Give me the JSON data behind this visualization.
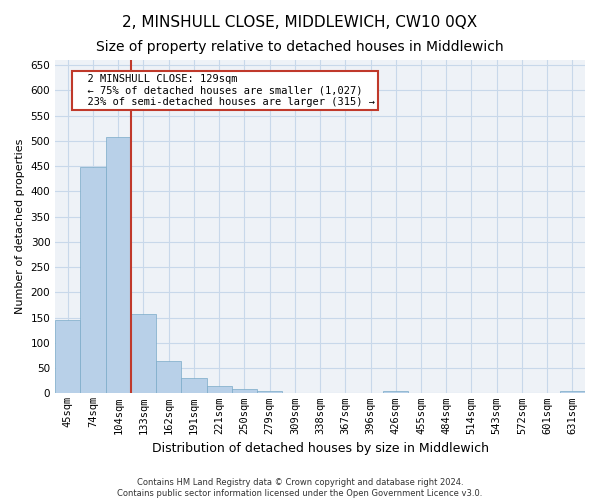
{
  "title": "2, MINSHULL CLOSE, MIDDLEWICH, CW10 0QX",
  "subtitle": "Size of property relative to detached houses in Middlewich",
  "xlabel": "Distribution of detached houses by size in Middlewich",
  "ylabel": "Number of detached properties",
  "footer_line1": "Contains HM Land Registry data © Crown copyright and database right 2024.",
  "footer_line2": "Contains public sector information licensed under the Open Government Licence v3.0.",
  "categories": [
    "45sqm",
    "74sqm",
    "104sqm",
    "133sqm",
    "162sqm",
    "191sqm",
    "221sqm",
    "250sqm",
    "279sqm",
    "309sqm",
    "338sqm",
    "367sqm",
    "396sqm",
    "426sqm",
    "455sqm",
    "484sqm",
    "514sqm",
    "543sqm",
    "572sqm",
    "601sqm",
    "631sqm"
  ],
  "values": [
    146,
    448,
    507,
    158,
    65,
    30,
    14,
    9,
    5,
    0,
    0,
    0,
    0,
    5,
    0,
    0,
    0,
    0,
    0,
    0,
    5
  ],
  "bar_color": "#b8d0e8",
  "bar_edge_color": "#7aaac8",
  "grid_color": "#c8d8ea",
  "vline_color": "#c0392b",
  "annotation_line1": "  2 MINSHULL CLOSE: 129sqm",
  "annotation_line2": "  ← 75% of detached houses are smaller (1,027)",
  "annotation_line3": "  23% of semi-detached houses are larger (315) →",
  "annotation_box_color": "#ffffff",
  "annotation_box_edge": "#c0392b",
  "ylim": [
    0,
    660
  ],
  "yticks": [
    0,
    50,
    100,
    150,
    200,
    250,
    300,
    350,
    400,
    450,
    500,
    550,
    600,
    650
  ],
  "background_color": "#ffffff",
  "plot_background": "#eef2f7",
  "title_fontsize": 11,
  "subtitle_fontsize": 10,
  "xlabel_fontsize": 9,
  "ylabel_fontsize": 8,
  "tick_fontsize": 7.5,
  "annotation_fontsize": 7.5
}
